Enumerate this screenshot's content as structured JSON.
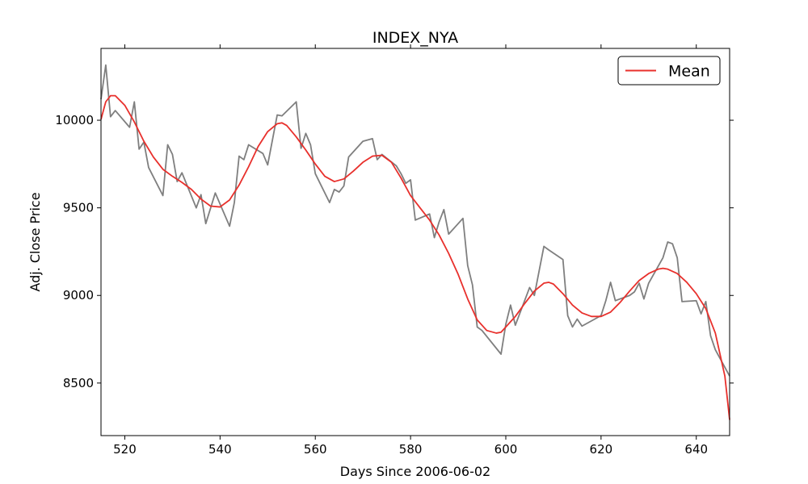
{
  "chart_data": {
    "type": "line",
    "title": "INDEX_NYA",
    "xlabel": "Days Since 2006-06-02",
    "ylabel": "Adj. Close Price",
    "xlim": [
      515,
      647
    ],
    "ylim": [
      8200,
      10410
    ],
    "x_ticks": [
      520,
      540,
      560,
      580,
      600,
      620,
      640
    ],
    "y_ticks": [
      8500,
      9000,
      9500,
      10000
    ],
    "legend": {
      "position": "top-right",
      "entries": [
        {
          "label": "Mean",
          "color": "#e8302c"
        }
      ]
    },
    "series": [
      {
        "name": "Adj. Close",
        "color": "#7f7f7f",
        "x": [
          515,
          516,
          517,
          518,
          521,
          522,
          523,
          524,
          525,
          528,
          529,
          530,
          531,
          532,
          535,
          536,
          537,
          539,
          542,
          543,
          544,
          545,
          546,
          549,
          550,
          552,
          553,
          556,
          557,
          558,
          559,
          560,
          563,
          564,
          565,
          566,
          567,
          570,
          572,
          573,
          574,
          577,
          578,
          579,
          580,
          581,
          584,
          585,
          586,
          587,
          588,
          591,
          592,
          593,
          594,
          595,
          599,
          600,
          601,
          602,
          605,
          606,
          607,
          608,
          609,
          612,
          613,
          614,
          615,
          616,
          619,
          620,
          621,
          622,
          623,
          626,
          627,
          628,
          629,
          630,
          633,
          634,
          635,
          636,
          637,
          640,
          641,
          642,
          643,
          644,
          647
        ],
        "values": [
          10120,
          10315,
          10020,
          10055,
          9960,
          10105,
          9835,
          9875,
          9730,
          9570,
          9860,
          9805,
          9650,
          9700,
          9500,
          9575,
          9410,
          9585,
          9395,
          9530,
          9795,
          9775,
          9860,
          9810,
          9745,
          10030,
          10025,
          10105,
          9840,
          9925,
          9860,
          9695,
          9530,
          9605,
          9590,
          9625,
          9790,
          9880,
          9895,
          9775,
          9805,
          9740,
          9695,
          9640,
          9660,
          9430,
          9465,
          9330,
          9420,
          9490,
          9350,
          9440,
          9170,
          9060,
          8820,
          8800,
          8665,
          8835,
          8945,
          8830,
          9045,
          9000,
          9140,
          9280,
          9260,
          9205,
          8885,
          8820,
          8865,
          8825,
          8870,
          8885,
          8970,
          9075,
          8970,
          9000,
          9020,
          9070,
          8980,
          9070,
          9215,
          9305,
          9295,
          9215,
          8965,
          8970,
          8895,
          8965,
          8770,
          8690,
          8540
        ]
      },
      {
        "name": "Mean",
        "color": "#e8302c",
        "x": [
          515,
          516,
          517,
          518,
          520,
          522,
          524,
          526,
          528,
          530,
          532,
          534,
          536,
          538,
          540,
          542,
          544,
          546,
          548,
          550,
          552,
          553,
          554,
          556,
          558,
          560,
          562,
          564,
          566,
          568,
          570,
          572,
          574,
          576,
          578,
          580,
          582,
          584,
          586,
          588,
          590,
          592,
          594,
          596,
          598,
          599,
          600,
          602,
          604,
          606,
          608,
          609,
          610,
          612,
          614,
          616,
          618,
          620,
          622,
          624,
          626,
          628,
          630,
          632,
          633,
          634,
          636,
          638,
          640,
          642,
          644,
          646,
          647
        ],
        "values": [
          10005,
          10105,
          10140,
          10140,
          10085,
          9990,
          9880,
          9790,
          9720,
          9680,
          9645,
          9605,
          9550,
          9510,
          9505,
          9545,
          9630,
          9735,
          9850,
          9935,
          9980,
          9985,
          9970,
          9905,
          9830,
          9750,
          9680,
          9650,
          9665,
          9710,
          9760,
          9795,
          9800,
          9760,
          9670,
          9570,
          9500,
          9430,
          9345,
          9240,
          9120,
          8980,
          8860,
          8800,
          8785,
          8790,
          8820,
          8880,
          8955,
          9025,
          9070,
          9075,
          9065,
          9010,
          8945,
          8900,
          8880,
          8880,
          8905,
          8960,
          9025,
          9085,
          9125,
          9150,
          9155,
          9150,
          9125,
          9075,
          9010,
          8925,
          8785,
          8540,
          8290
        ]
      }
    ]
  }
}
